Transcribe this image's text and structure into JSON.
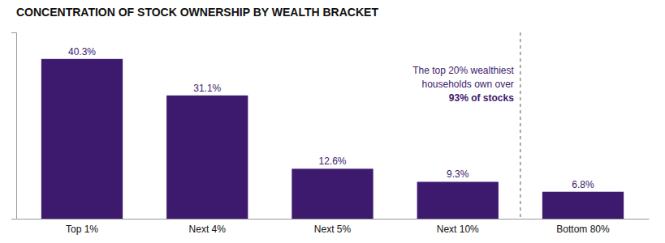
{
  "chart_data": {
    "type": "bar",
    "title": "CONCENTRATION OF STOCK OWNERSHIP BY WEALTH BRACKET",
    "categories": [
      "Top 1%",
      "Next 4%",
      "Next 5%",
      "Next 10%",
      "Bottom 80%"
    ],
    "values": [
      40.3,
      31.1,
      12.6,
      9.3,
      6.8
    ],
    "value_labels": [
      "40.3%",
      "31.1%",
      "12.6%",
      "9.3%",
      "6.8%"
    ],
    "data_labels": true,
    "color": "#3d1a6e",
    "annotations": [
      "The top 20% wealthiest",
      "households own over",
      "93% of stocks"
    ],
    "ylim": [
      0,
      47
    ],
    "yticks": [],
    "tick_labels": "x",
    "grid": false
  }
}
